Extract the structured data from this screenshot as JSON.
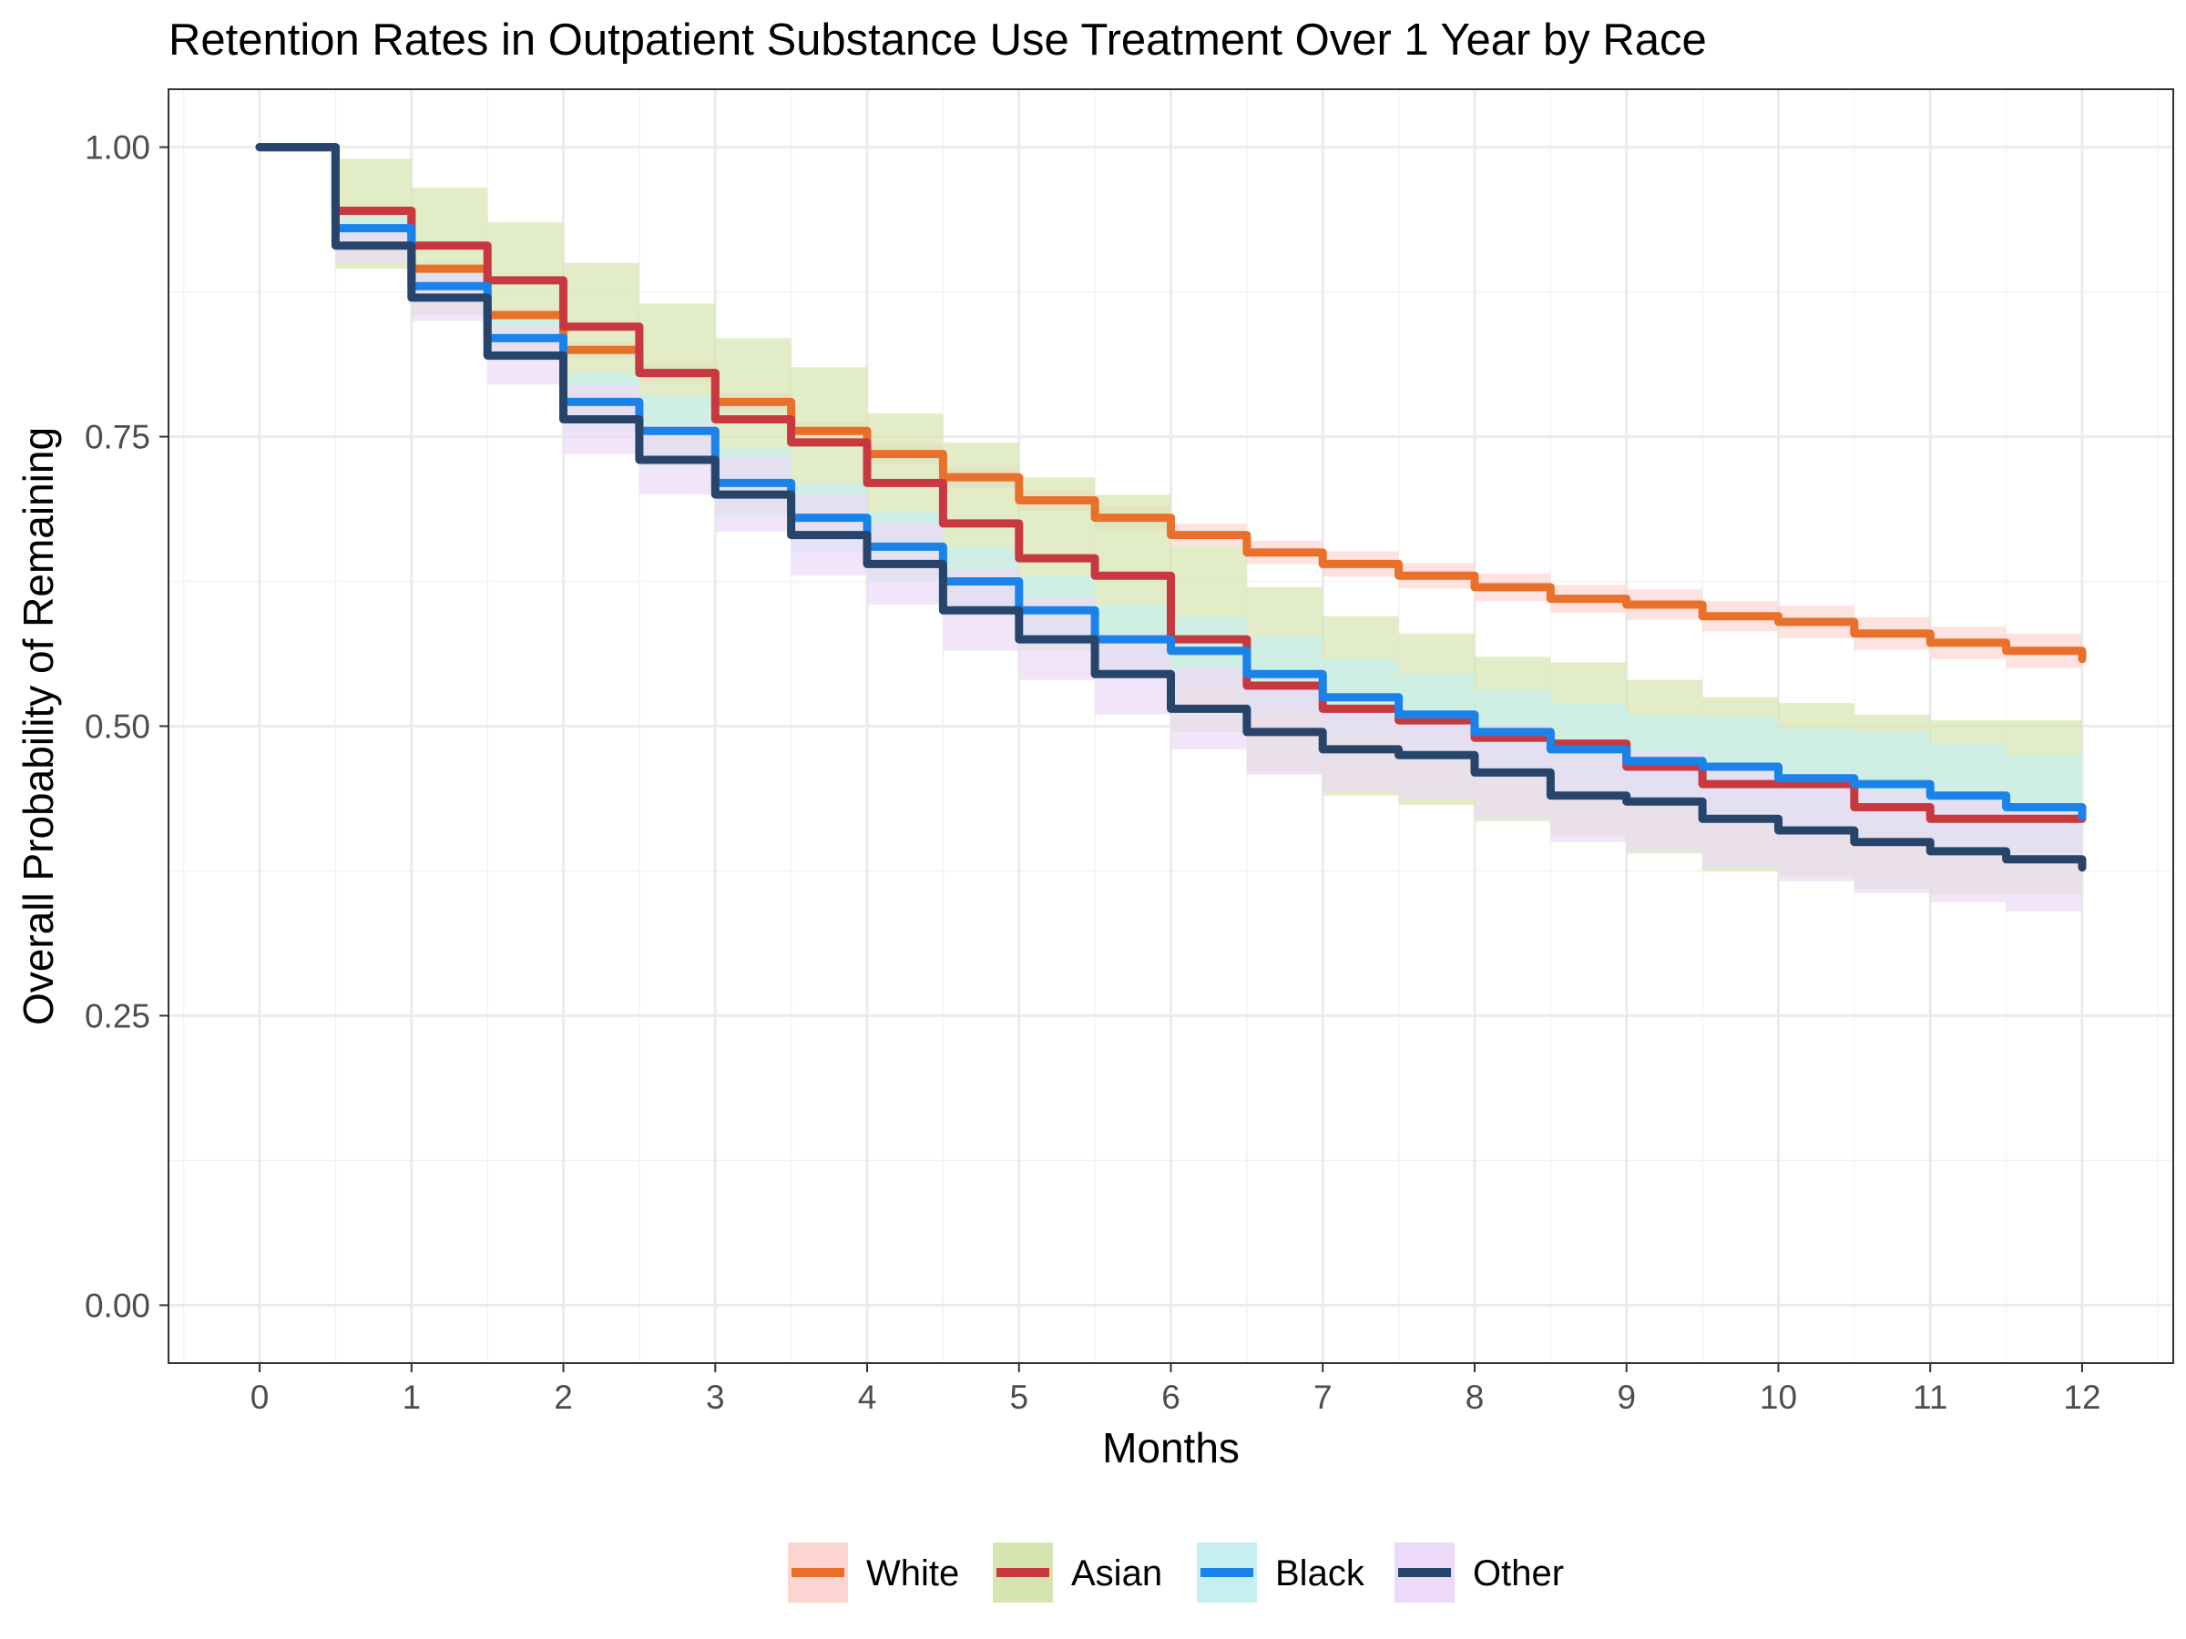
{
  "chart_data": {
    "type": "line",
    "subtype": "kaplan-meier step curves with confidence bands",
    "title": "Retention Rates in Outpatient Substance Use Treatment Over 1 Year by Race",
    "xlabel": "Months",
    "ylabel": "Overall Probability of Remaining",
    "xlim": [
      -0.6,
      12.6
    ],
    "ylim": [
      -0.05,
      1.05
    ],
    "x_ticks": [
      0,
      1,
      2,
      3,
      4,
      5,
      6,
      7,
      8,
      9,
      10,
      11,
      12
    ],
    "x_tick_labels": [
      "0",
      "1",
      "2",
      "3",
      "4",
      "5",
      "6",
      "7",
      "8",
      "9",
      "10",
      "11",
      "12"
    ],
    "y_ticks": [
      0,
      0.25,
      0.5,
      0.75,
      1.0
    ],
    "y_tick_labels": [
      "0.00",
      "0.25",
      "0.50",
      "0.75",
      "1.00"
    ],
    "grid": true,
    "legend_position": "bottom",
    "x": [
      0,
      0.5,
      1,
      1.5,
      2,
      2.5,
      3,
      3.5,
      4,
      4.5,
      5,
      5.5,
      6,
      6.5,
      7,
      7.5,
      8,
      8.5,
      9,
      9.5,
      10,
      10.5,
      11,
      11.5,
      12
    ],
    "series": [
      {
        "name": "White",
        "color": "#e8702a",
        "band_color": "#fcd5d1",
        "values": [
          1.0,
          0.945,
          0.895,
          0.855,
          0.825,
          0.805,
          0.78,
          0.755,
          0.735,
          0.715,
          0.695,
          0.68,
          0.665,
          0.65,
          0.64,
          0.63,
          0.62,
          0.61,
          0.605,
          0.595,
          0.59,
          0.58,
          0.572,
          0.565,
          0.558
        ],
        "lower": [
          1.0,
          0.94,
          0.89,
          0.85,
          0.818,
          0.797,
          0.772,
          0.747,
          0.726,
          0.706,
          0.686,
          0.67,
          0.655,
          0.64,
          0.629,
          0.619,
          0.608,
          0.598,
          0.592,
          0.582,
          0.576,
          0.566,
          0.558,
          0.55,
          0.543
        ],
        "upper": [
          1.0,
          0.95,
          0.9,
          0.86,
          0.832,
          0.813,
          0.788,
          0.763,
          0.744,
          0.724,
          0.704,
          0.69,
          0.675,
          0.66,
          0.651,
          0.641,
          0.632,
          0.622,
          0.618,
          0.608,
          0.604,
          0.594,
          0.586,
          0.58,
          0.573
        ]
      },
      {
        "name": "Asian",
        "color": "#c8383f",
        "band_color": "#d6e5b0",
        "values": [
          1.0,
          0.945,
          0.915,
          0.885,
          0.845,
          0.805,
          0.765,
          0.745,
          0.71,
          0.675,
          0.645,
          0.63,
          0.575,
          0.535,
          0.515,
          0.505,
          0.49,
          0.485,
          0.465,
          0.45,
          0.45,
          0.43,
          0.42,
          0.42,
          0.42
        ],
        "lower": [
          1.0,
          0.895,
          0.855,
          0.815,
          0.77,
          0.725,
          0.685,
          0.665,
          0.63,
          0.595,
          0.565,
          0.55,
          0.495,
          0.46,
          0.44,
          0.432,
          0.418,
          0.405,
          0.39,
          0.375,
          0.37,
          0.36,
          0.355,
          0.355,
          0.36
        ],
        "upper": [
          1.0,
          0.99,
          0.965,
          0.935,
          0.9,
          0.865,
          0.835,
          0.81,
          0.77,
          0.745,
          0.715,
          0.7,
          0.655,
          0.62,
          0.595,
          0.58,
          0.56,
          0.555,
          0.54,
          0.525,
          0.52,
          0.51,
          0.505,
          0.505,
          0.505
        ]
      },
      {
        "name": "Black",
        "color": "#1a82e8",
        "band_color": "#c7eef0",
        "values": [
          1.0,
          0.93,
          0.88,
          0.835,
          0.78,
          0.755,
          0.71,
          0.68,
          0.655,
          0.625,
          0.6,
          0.575,
          0.565,
          0.545,
          0.525,
          0.51,
          0.495,
          0.48,
          0.47,
          0.465,
          0.455,
          0.45,
          0.44,
          0.43,
          0.422
        ],
        "lower": [
          1.0,
          0.92,
          0.865,
          0.815,
          0.755,
          0.725,
          0.68,
          0.65,
          0.625,
          0.595,
          0.57,
          0.545,
          0.535,
          0.512,
          0.492,
          0.475,
          0.458,
          0.44,
          0.43,
          0.422,
          0.412,
          0.405,
          0.395,
          0.385,
          0.378
        ],
        "upper": [
          1.0,
          0.94,
          0.895,
          0.855,
          0.805,
          0.785,
          0.74,
          0.71,
          0.685,
          0.655,
          0.63,
          0.605,
          0.595,
          0.578,
          0.558,
          0.545,
          0.532,
          0.52,
          0.51,
          0.508,
          0.498,
          0.495,
          0.485,
          0.475,
          0.466
        ]
      },
      {
        "name": "Other",
        "color": "#27446b",
        "band_color": "#ecdaf8",
        "values": [
          1.0,
          0.915,
          0.87,
          0.82,
          0.765,
          0.73,
          0.7,
          0.665,
          0.64,
          0.6,
          0.575,
          0.545,
          0.515,
          0.495,
          0.48,
          0.475,
          0.46,
          0.44,
          0.435,
          0.42,
          0.41,
          0.4,
          0.392,
          0.385,
          0.378
        ],
        "lower": [
          1.0,
          0.9,
          0.85,
          0.795,
          0.735,
          0.7,
          0.668,
          0.63,
          0.605,
          0.565,
          0.54,
          0.51,
          0.48,
          0.458,
          0.443,
          0.437,
          0.42,
          0.4,
          0.392,
          0.378,
          0.366,
          0.356,
          0.348,
          0.34,
          0.335
        ],
        "upper": [
          1.0,
          0.93,
          0.89,
          0.845,
          0.795,
          0.76,
          0.732,
          0.7,
          0.675,
          0.635,
          0.61,
          0.58,
          0.55,
          0.532,
          0.517,
          0.513,
          0.5,
          0.48,
          0.478,
          0.462,
          0.454,
          0.444,
          0.436,
          0.43,
          0.421
        ]
      }
    ]
  }
}
